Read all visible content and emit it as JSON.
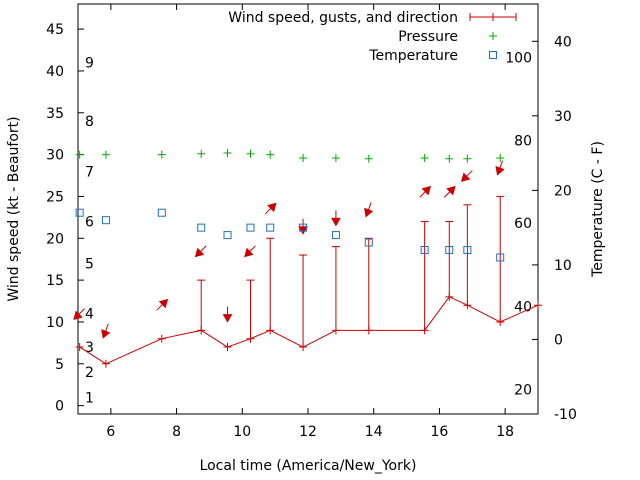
{
  "chart_data": {
    "type": "line",
    "x_label": "Local time (America/New_York)",
    "y_label_left": "Wind speed (kt - Beaufort)",
    "y_label_right": "Temperature (C - F)",
    "xlim": [
      5,
      19
    ],
    "ylim_left": [
      -1,
      48
    ],
    "ylim_right": [
      -10,
      45
    ],
    "x_ticks": [
      6,
      8,
      10,
      12,
      14,
      16,
      18
    ],
    "y_ticks_left": [
      0,
      5,
      10,
      15,
      20,
      25,
      30,
      35,
      40,
      45
    ],
    "y_ticks_right": [
      -10,
      0,
      10,
      20,
      30,
      40
    ],
    "beaufort_labels": [
      {
        "label": "1",
        "kt": 1
      },
      {
        "label": "2",
        "kt": 4
      },
      {
        "label": "3",
        "kt": 7
      },
      {
        "label": "4",
        "kt": 11
      },
      {
        "label": "5",
        "kt": 17
      },
      {
        "label": "6",
        "kt": 22
      },
      {
        "label": "7",
        "kt": 28
      },
      {
        "label": "8",
        "kt": 34
      },
      {
        "label": "9",
        "kt": 41
      }
    ],
    "fahrenheit_labels": [
      {
        "label": "20",
        "c": -6.7
      },
      {
        "label": "40",
        "c": 4.4
      },
      {
        "label": "60",
        "c": 15.6
      },
      {
        "label": "80",
        "c": 26.7
      },
      {
        "label": "100",
        "c": 37.8
      }
    ],
    "legend": {
      "position": "top-right",
      "entries": [
        "Wind speed, gusts, and direction",
        "Pressure",
        "Temperature"
      ]
    },
    "colors": {
      "wind": "#cc0000",
      "pressure": "#00aa00",
      "temperature": "#1f6fc8"
    },
    "series": [
      {
        "name": "Wind speed, gusts, and direction",
        "axis": "left",
        "x": [
          5.05,
          5.85,
          7.55,
          8.75,
          9.55,
          10.25,
          10.85,
          11.85,
          12.85,
          13.85,
          15.55,
          16.3,
          16.85,
          17.85,
          19.0
        ],
        "values": [
          7,
          5,
          8,
          9,
          7,
          8,
          9,
          7,
          9,
          9,
          9,
          13,
          12,
          10,
          12
        ],
        "gusts": [
          null,
          null,
          null,
          15,
          null,
          15,
          20,
          18,
          19,
          20,
          22,
          22,
          24,
          25,
          null
        ],
        "direction_deg": [
          225,
          200,
          45,
          225,
          180,
          225,
          45,
          180,
          180,
          200,
          45,
          45,
          225,
          200,
          null
        ]
      },
      {
        "name": "Pressure",
        "axis": "left",
        "x": [
          5.05,
          5.85,
          7.55,
          8.75,
          9.55,
          10.25,
          10.85,
          11.85,
          12.85,
          13.85,
          15.55,
          16.3,
          16.85,
          17.85
        ],
        "values": [
          30.0,
          30.0,
          30.0,
          30.1,
          30.2,
          30.1,
          30.0,
          29.6,
          29.6,
          29.5,
          29.6,
          29.5,
          29.5,
          29.6
        ]
      },
      {
        "name": "Temperature",
        "axis": "right",
        "x": [
          5.05,
          5.85,
          7.55,
          8.75,
          9.55,
          10.25,
          10.85,
          11.85,
          12.85,
          13.85,
          15.55,
          16.3,
          16.85,
          17.85
        ],
        "values": [
          17,
          16,
          17,
          15,
          14,
          15,
          15,
          15,
          14,
          13,
          12,
          12,
          12,
          11
        ]
      }
    ]
  }
}
